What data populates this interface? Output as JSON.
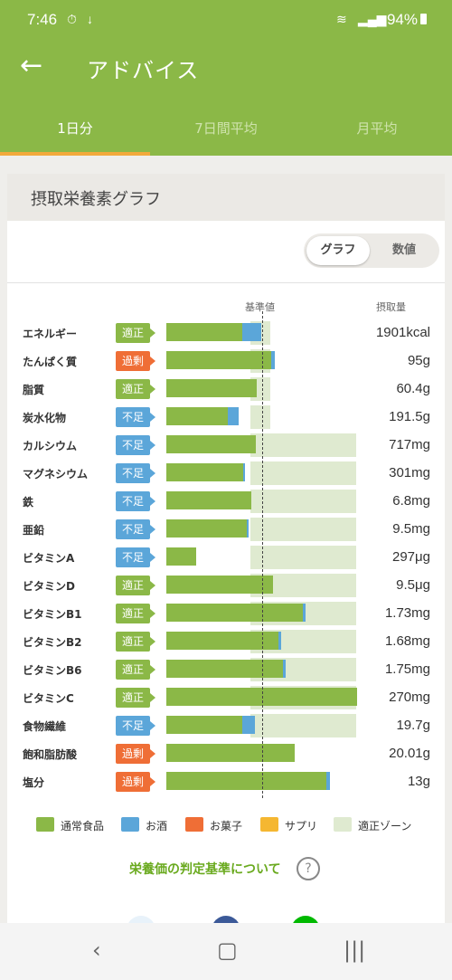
{
  "status": {
    "time": "7:46",
    "battery": "94%"
  },
  "appbar": {
    "title": "アドバイス"
  },
  "tabs": [
    "1日分",
    "7日間平均",
    "月平均"
  ],
  "card": {
    "title": "摂取栄養素グラフ",
    "toggle": [
      "グラフ",
      "数値"
    ],
    "header_ref": "基準値",
    "header_intake": "摂取量"
  },
  "status_colors": {
    "適正": "#8bb847",
    "不足": "#5ba6d9",
    "過剰": "#ef6e36"
  },
  "nutrients": [
    {
      "name": "エネルギー",
      "status": "適正",
      "food": 84,
      "alcohol": 21,
      "value": "1901kcal",
      "zone": [
        93,
        115
      ]
    },
    {
      "name": "たんぱく質",
      "status": "過剰",
      "food": 116,
      "alcohol": 4,
      "value": "95g",
      "zone": [
        93,
        115
      ]
    },
    {
      "name": "脂質",
      "status": "適正",
      "food": 100,
      "alcohol": 0,
      "value": "60.4g",
      "zone": [
        93,
        115
      ]
    },
    {
      "name": "炭水化物",
      "status": "不足",
      "food": 68,
      "alcohol": 12,
      "value": "191.5g",
      "zone": [
        93,
        115
      ]
    },
    {
      "name": "カルシウム",
      "status": "不足",
      "food": 99,
      "alcohol": 0,
      "value": "717mg",
      "zone": [
        93,
        210
      ]
    },
    {
      "name": "マグネシウム",
      "status": "不足",
      "food": 85,
      "alcohol": 2,
      "value": "301mg",
      "zone": [
        93,
        210
      ]
    },
    {
      "name": "鉄",
      "status": "不足",
      "food": 94,
      "alcohol": 0,
      "value": "6.8mg",
      "zone": [
        93,
        210
      ]
    },
    {
      "name": "亜鉛",
      "status": "不足",
      "food": 89,
      "alcohol": 2,
      "value": "9.5mg",
      "zone": [
        93,
        210
      ]
    },
    {
      "name": "ビタミンA",
      "status": "不足",
      "food": 33,
      "alcohol": 0,
      "value": "297μg",
      "zone": [
        93,
        210
      ]
    },
    {
      "name": "ビタミンD",
      "status": "適正",
      "food": 118,
      "alcohol": 0,
      "value": "9.5μg",
      "zone": [
        93,
        210
      ]
    },
    {
      "name": "ビタミンB1",
      "status": "適正",
      "food": 151,
      "alcohol": 3,
      "value": "1.73mg",
      "zone": [
        93,
        210
      ]
    },
    {
      "name": "ビタミンB2",
      "status": "適正",
      "food": 124,
      "alcohol": 3,
      "value": "1.68mg",
      "zone": [
        93,
        210
      ]
    },
    {
      "name": "ビタミンB6",
      "status": "適正",
      "food": 129,
      "alcohol": 3,
      "value": "1.75mg",
      "zone": [
        93,
        210
      ]
    },
    {
      "name": "ビタミンC",
      "status": "適正",
      "food": 211,
      "alcohol": 0,
      "value": "270mg",
      "zone": [
        93,
        210
      ]
    },
    {
      "name": "食物繊維",
      "status": "不足",
      "food": 84,
      "alcohol": 14,
      "value": "19.7g",
      "zone": [
        93,
        210
      ]
    },
    {
      "name": "飽和脂肪酸",
      "status": "過剰",
      "food": 142,
      "alcohol": 0,
      "value": "20.01g",
      "zone": [
        0,
        0
      ]
    },
    {
      "name": "塩分",
      "status": "過剰",
      "food": 177,
      "alcohol": 4,
      "value": "13g",
      "zone": [
        0,
        0
      ]
    }
  ],
  "legend": [
    {
      "label": "通常食品",
      "color": "#8bb847"
    },
    {
      "label": "お酒",
      "color": "#5ba6d9"
    },
    {
      "label": "お菓子",
      "color": "#ef6e36"
    },
    {
      "label": "サプリ",
      "color": "#f5b731"
    },
    {
      "label": "適正ゾーン",
      "color": "#dfead0"
    }
  ],
  "link_text": "栄養価の判定基準について",
  "help_icon": "?"
}
